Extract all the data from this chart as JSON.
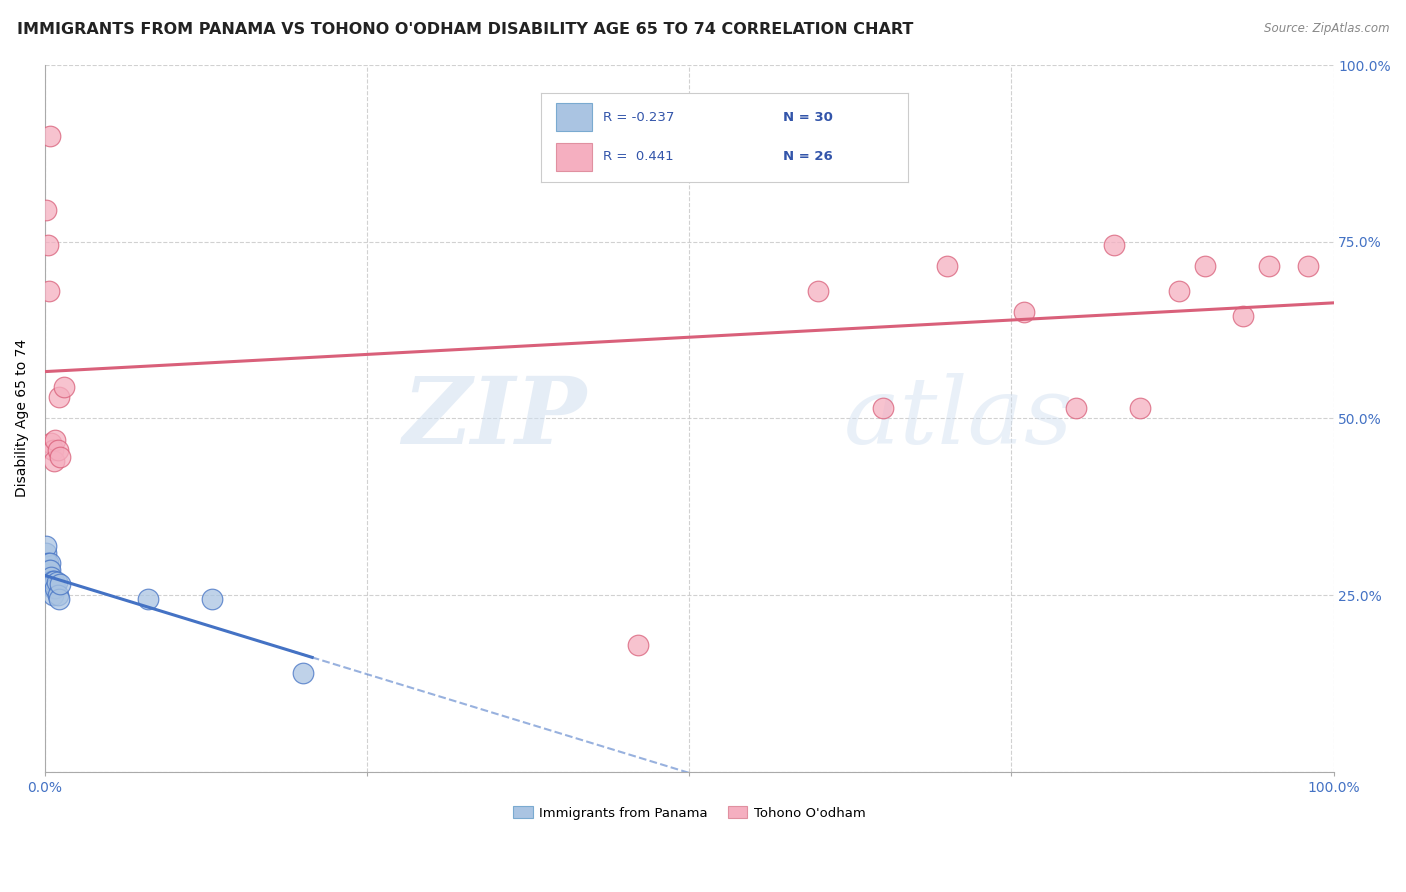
{
  "title": "IMMIGRANTS FROM PANAMA VS TOHONO O'ODHAM DISABILITY AGE 65 TO 74 CORRELATION CHART",
  "source": "Source: ZipAtlas.com",
  "ylabel": "Disability Age 65 to 74",
  "xlim": [
    0,
    1.0
  ],
  "ylim": [
    0,
    1.0
  ],
  "blue_color": "#aac4e2",
  "pink_color": "#f5afc0",
  "blue_line_color": "#4472c4",
  "pink_line_color": "#d9607a",
  "tick_color": "#4472c4",
  "grid_color": "#cccccc",
  "background_color": "#ffffff",
  "title_fontsize": 11.5,
  "axis_label_fontsize": 10,
  "tick_fontsize": 10,
  "blue_points_x": [
    0.001,
    0.001,
    0.001,
    0.001,
    0.002,
    0.002,
    0.002,
    0.002,
    0.003,
    0.003,
    0.003,
    0.004,
    0.004,
    0.004,
    0.005,
    0.005,
    0.005,
    0.006,
    0.006,
    0.006,
    0.007,
    0.007,
    0.008,
    0.009,
    0.01,
    0.011,
    0.012,
    0.08,
    0.13,
    0.2
  ],
  "blue_points_y": [
    0.295,
    0.31,
    0.32,
    0.28,
    0.295,
    0.275,
    0.265,
    0.28,
    0.285,
    0.265,
    0.27,
    0.295,
    0.285,
    0.265,
    0.27,
    0.275,
    0.265,
    0.27,
    0.26,
    0.25,
    0.265,
    0.27,
    0.26,
    0.268,
    0.25,
    0.245,
    0.265,
    0.245,
    0.245,
    0.14
  ],
  "pink_points_x": [
    0.001,
    0.002,
    0.003,
    0.004,
    0.005,
    0.006,
    0.007,
    0.008,
    0.01,
    0.011,
    0.012,
    0.015,
    0.46,
    0.55,
    0.6,
    0.65,
    0.7,
    0.76,
    0.8,
    0.83,
    0.85,
    0.88,
    0.9,
    0.93,
    0.95,
    0.98
  ],
  "pink_points_y": [
    0.795,
    0.745,
    0.68,
    0.9,
    0.465,
    0.455,
    0.44,
    0.47,
    0.455,
    0.53,
    0.445,
    0.545,
    0.18,
    0.875,
    0.68,
    0.515,
    0.715,
    0.65,
    0.515,
    0.745,
    0.515,
    0.68,
    0.715,
    0.645,
    0.715,
    0.715
  ],
  "watermark_zip": "ZIP",
  "watermark_atlas": "atlas",
  "legend_blue_r": "R = -0.237",
  "legend_blue_n": "N = 30",
  "legend_pink_r": "R =  0.441",
  "legend_pink_n": "N = 26"
}
